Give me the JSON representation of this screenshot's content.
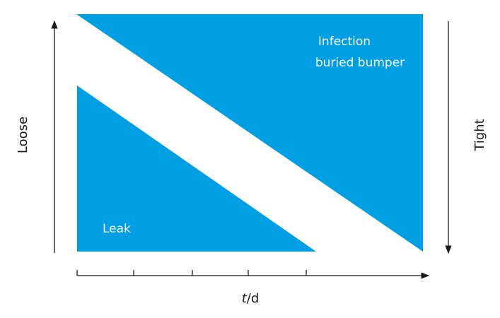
{
  "colors": {
    "region_fill": "#009fe3",
    "axis": "#1a1a1a",
    "region_text": "#ffffff"
  },
  "regions": {
    "upper": {
      "line1": "Infection",
      "line2": "buried bumper"
    },
    "lower": {
      "label": "Leak"
    }
  },
  "axes": {
    "left_label": "Loose",
    "right_label": "Tight",
    "x_label_var": "t",
    "x_label_unit": "/d",
    "x_tick_count": 5
  }
}
